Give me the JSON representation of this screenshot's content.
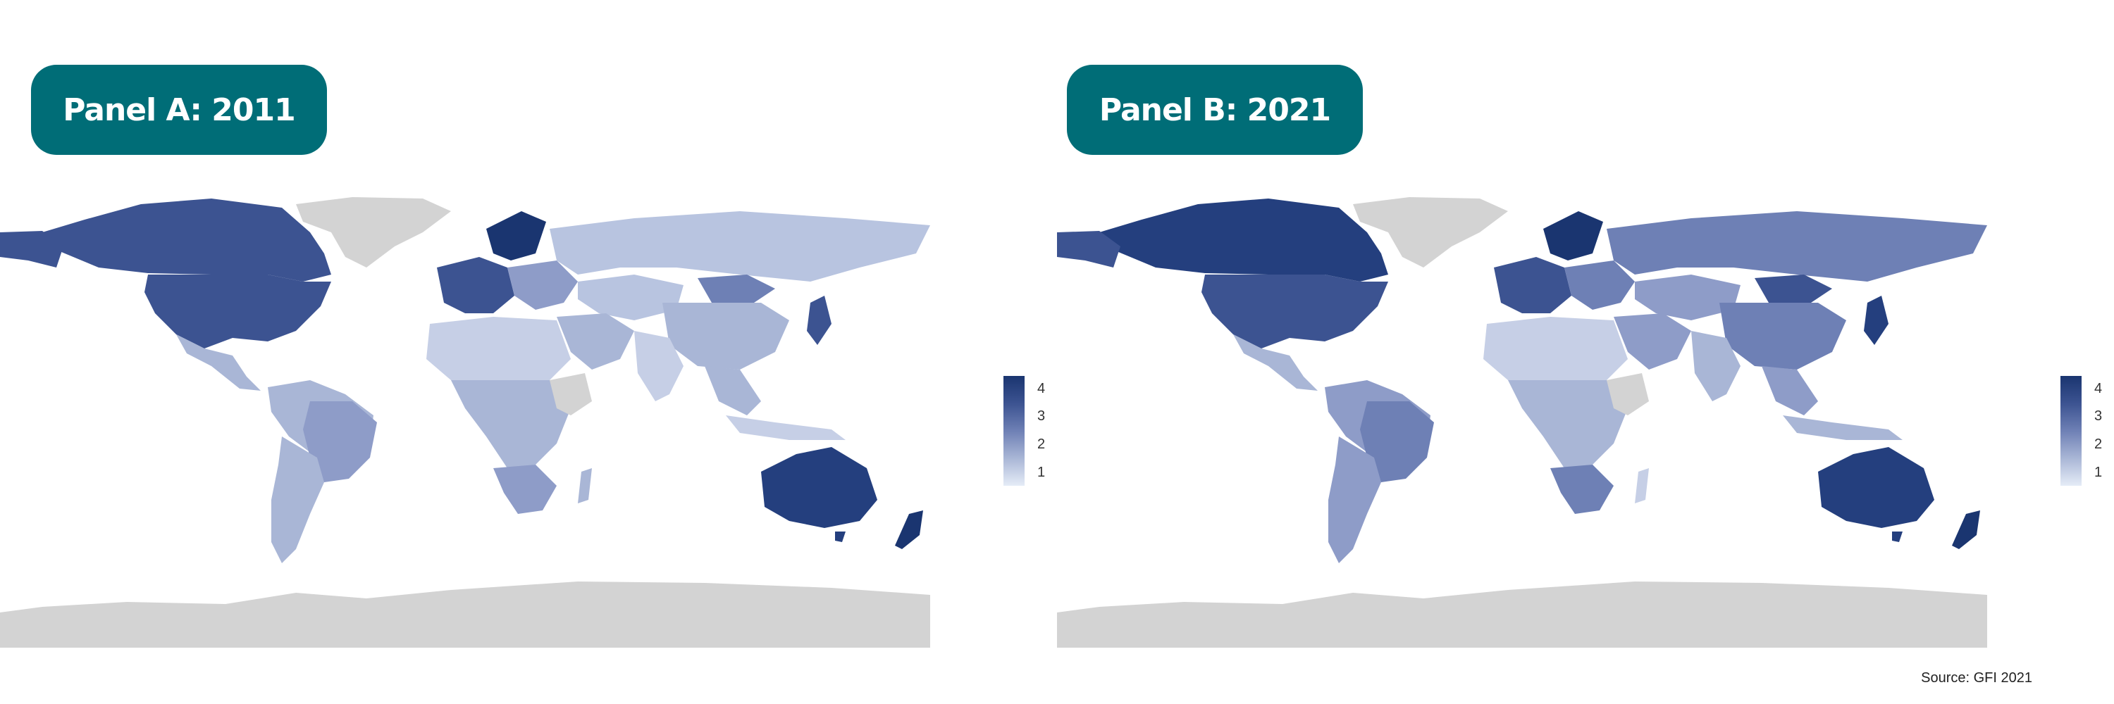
{
  "panels": [
    {
      "title": "Panel A: 2011"
    },
    {
      "title": "Panel B: 2021"
    }
  ],
  "legend": {
    "ticks": [
      "4",
      "3",
      "2",
      "1"
    ],
    "colors": {
      "high": "#1a3570",
      "mid": "#6e80b5",
      "low": "#e5ecf7",
      "no_data": "#d3d3d3"
    }
  },
  "source": "Source: GFI 2021"
}
